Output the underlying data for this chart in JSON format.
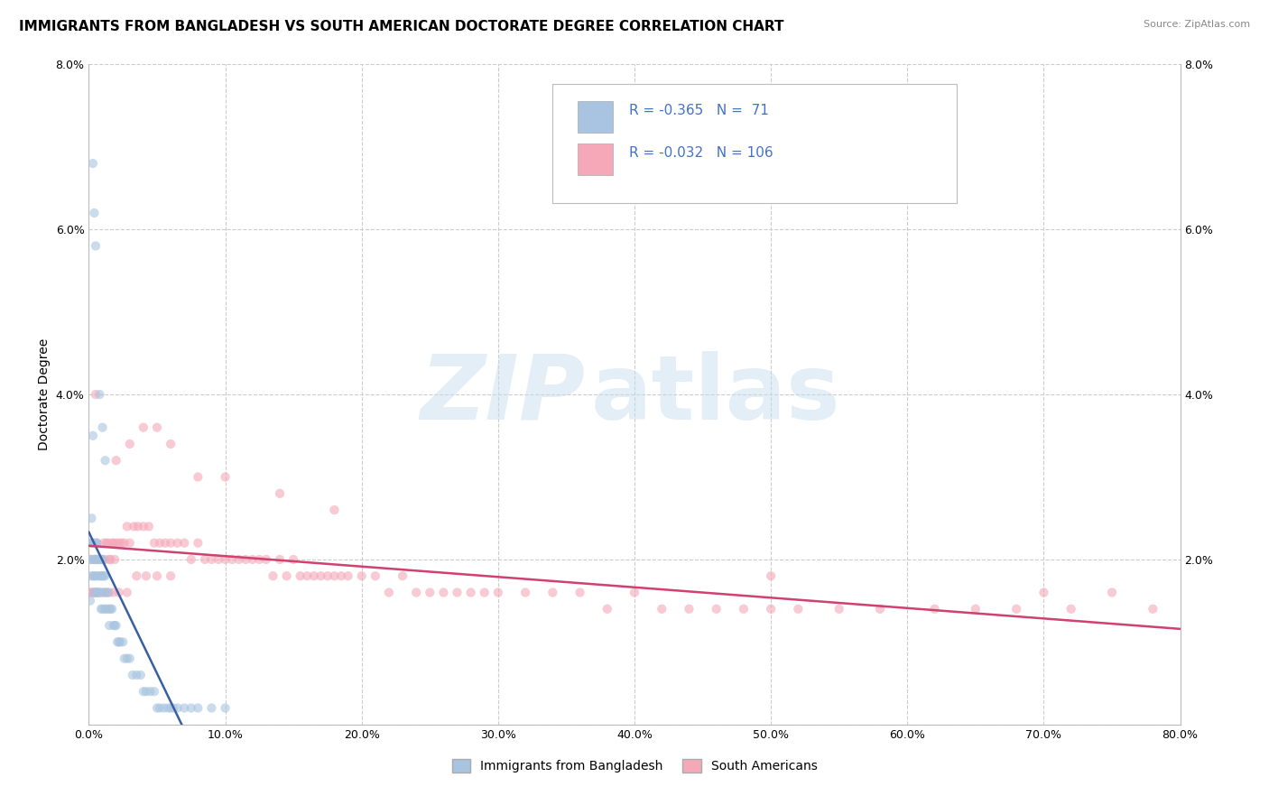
{
  "title": "IMMIGRANTS FROM BANGLADESH VS SOUTH AMERICAN DOCTORATE DEGREE CORRELATION CHART",
  "source": "Source: ZipAtlas.com",
  "ylabel": "Doctorate Degree",
  "legend_labels": [
    "Immigrants from Bangladesh",
    "South Americans"
  ],
  "r_bangladesh": -0.365,
  "n_bangladesh": 71,
  "r_south_american": -0.032,
  "n_south_american": 106,
  "color_bangladesh": "#a8c4e0",
  "color_south_american": "#f4a8b8",
  "line_color_bangladesh": "#3a5fa0",
  "line_color_south_american": "#d04070",
  "legend_text_color": "#4472c4",
  "xlim": [
    0.0,
    0.8
  ],
  "ylim": [
    0.0,
    0.08
  ],
  "xticks": [
    0.0,
    0.1,
    0.2,
    0.3,
    0.4,
    0.5,
    0.6,
    0.7,
    0.8
  ],
  "yticks": [
    0.0,
    0.02,
    0.04,
    0.06,
    0.08
  ],
  "xtick_labels": [
    "0.0%",
    "10.0%",
    "20.0%",
    "30.0%",
    "40.0%",
    "50.0%",
    "60.0%",
    "70.0%",
    "80.0%"
  ],
  "ytick_labels": [
    "",
    "2.0%",
    "4.0%",
    "6.0%",
    "8.0%"
  ],
  "background_color": "#ffffff",
  "grid_color": "#cccccc",
  "grid_linestyle": "--",
  "scatter_alpha": 0.6,
  "scatter_size": 55,
  "title_fontsize": 11,
  "axis_label_fontsize": 10,
  "tick_fontsize": 9,
  "bangladesh_x": [
    0.001,
    0.001,
    0.002,
    0.002,
    0.002,
    0.003,
    0.003,
    0.003,
    0.003,
    0.004,
    0.004,
    0.004,
    0.005,
    0.005,
    0.005,
    0.005,
    0.006,
    0.006,
    0.006,
    0.007,
    0.007,
    0.007,
    0.008,
    0.008,
    0.008,
    0.009,
    0.009,
    0.009,
    0.01,
    0.01,
    0.01,
    0.011,
    0.011,
    0.012,
    0.012,
    0.013,
    0.013,
    0.014,
    0.015,
    0.015,
    0.016,
    0.017,
    0.018,
    0.019,
    0.02,
    0.021,
    0.022,
    0.023,
    0.025,
    0.026,
    0.028,
    0.03,
    0.032,
    0.035,
    0.038,
    0.04,
    0.042,
    0.045,
    0.048,
    0.05,
    0.052,
    0.055,
    0.058,
    0.06,
    0.062,
    0.065,
    0.07,
    0.075,
    0.08,
    0.09,
    0.1
  ],
  "bangladesh_y": [
    0.02,
    0.015,
    0.025,
    0.022,
    0.018,
    0.022,
    0.02,
    0.018,
    0.035,
    0.02,
    0.018,
    0.016,
    0.022,
    0.02,
    0.018,
    0.016,
    0.022,
    0.02,
    0.016,
    0.02,
    0.018,
    0.016,
    0.02,
    0.018,
    0.016,
    0.02,
    0.018,
    0.014,
    0.02,
    0.018,
    0.014,
    0.018,
    0.016,
    0.018,
    0.014,
    0.016,
    0.014,
    0.016,
    0.014,
    0.012,
    0.014,
    0.014,
    0.012,
    0.012,
    0.012,
    0.01,
    0.01,
    0.01,
    0.01,
    0.008,
    0.008,
    0.008,
    0.006,
    0.006,
    0.006,
    0.004,
    0.004,
    0.004,
    0.004,
    0.002,
    0.002,
    0.002,
    0.002,
    0.002,
    0.002,
    0.002,
    0.002,
    0.002,
    0.002,
    0.002,
    0.002
  ],
  "bangladesh_outliers_x": [
    0.003,
    0.004,
    0.005,
    0.008,
    0.01,
    0.012
  ],
  "bangladesh_outliers_y": [
    0.068,
    0.062,
    0.058,
    0.04,
    0.036,
    0.032
  ],
  "south_american_x": [
    0.001,
    0.002,
    0.003,
    0.004,
    0.005,
    0.006,
    0.007,
    0.008,
    0.009,
    0.01,
    0.011,
    0.012,
    0.013,
    0.014,
    0.015,
    0.016,
    0.017,
    0.018,
    0.019,
    0.02,
    0.022,
    0.024,
    0.026,
    0.028,
    0.03,
    0.033,
    0.036,
    0.04,
    0.044,
    0.048,
    0.052,
    0.056,
    0.06,
    0.065,
    0.07,
    0.075,
    0.08,
    0.085,
    0.09,
    0.095,
    0.1,
    0.105,
    0.11,
    0.115,
    0.12,
    0.125,
    0.13,
    0.135,
    0.14,
    0.145,
    0.15,
    0.155,
    0.16,
    0.165,
    0.17,
    0.175,
    0.18,
    0.185,
    0.19,
    0.2,
    0.21,
    0.22,
    0.23,
    0.24,
    0.25,
    0.26,
    0.27,
    0.28,
    0.29,
    0.3,
    0.32,
    0.34,
    0.36,
    0.38,
    0.4,
    0.42,
    0.44,
    0.46,
    0.48,
    0.5,
    0.52,
    0.55,
    0.58,
    0.62,
    0.65,
    0.68,
    0.72,
    0.75,
    0.78,
    0.001,
    0.002,
    0.003,
    0.004,
    0.005,
    0.006,
    0.008,
    0.01,
    0.012,
    0.015,
    0.018,
    0.022,
    0.028,
    0.035,
    0.042,
    0.05,
    0.06
  ],
  "south_american_y": [
    0.02,
    0.022,
    0.022,
    0.02,
    0.02,
    0.022,
    0.02,
    0.02,
    0.02,
    0.02,
    0.022,
    0.02,
    0.022,
    0.022,
    0.02,
    0.02,
    0.022,
    0.022,
    0.02,
    0.022,
    0.022,
    0.022,
    0.022,
    0.024,
    0.022,
    0.024,
    0.024,
    0.024,
    0.024,
    0.022,
    0.022,
    0.022,
    0.022,
    0.022,
    0.022,
    0.02,
    0.022,
    0.02,
    0.02,
    0.02,
    0.02,
    0.02,
    0.02,
    0.02,
    0.02,
    0.02,
    0.02,
    0.018,
    0.02,
    0.018,
    0.02,
    0.018,
    0.018,
    0.018,
    0.018,
    0.018,
    0.018,
    0.018,
    0.018,
    0.018,
    0.018,
    0.016,
    0.018,
    0.016,
    0.016,
    0.016,
    0.016,
    0.016,
    0.016,
    0.016,
    0.016,
    0.016,
    0.016,
    0.014,
    0.016,
    0.014,
    0.014,
    0.014,
    0.014,
    0.014,
    0.014,
    0.014,
    0.014,
    0.014,
    0.014,
    0.014,
    0.014,
    0.016,
    0.014,
    0.016,
    0.016,
    0.016,
    0.016,
    0.016,
    0.016,
    0.016,
    0.016,
    0.016,
    0.016,
    0.016,
    0.016,
    0.016,
    0.018,
    0.018,
    0.018,
    0.018
  ],
  "south_american_outliers_x": [
    0.005,
    0.02,
    0.03,
    0.04,
    0.05,
    0.06,
    0.08,
    0.1,
    0.14,
    0.18,
    0.5,
    0.7
  ],
  "south_american_outliers_y": [
    0.04,
    0.032,
    0.034,
    0.036,
    0.036,
    0.034,
    0.03,
    0.03,
    0.028,
    0.026,
    0.018,
    0.016
  ]
}
